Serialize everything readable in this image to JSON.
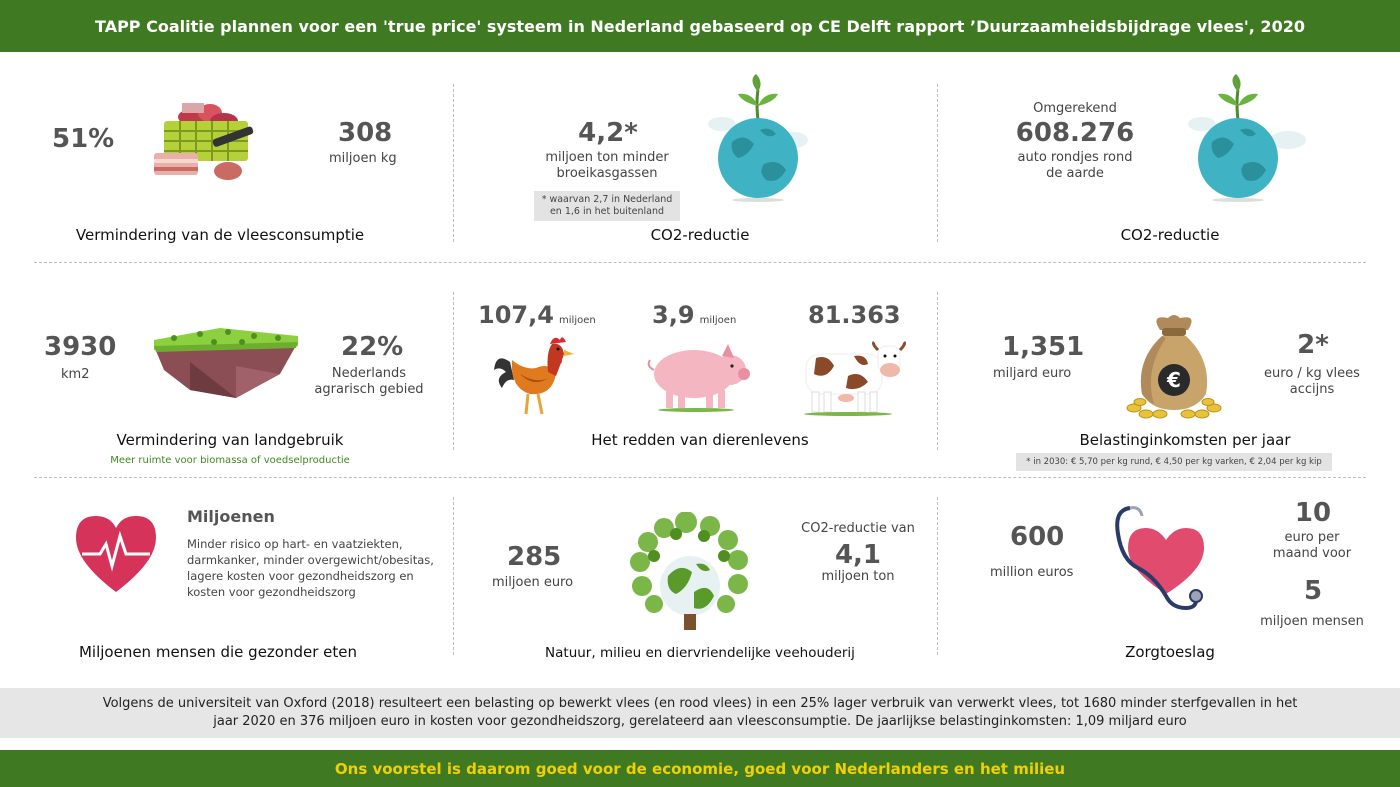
{
  "header": {
    "title": "TAPP Coalitie plannen voor een 'true price' systeem in Nederland gebaseerd op CE Delft rapport ’Duurzaamheidsbijdrage vlees', 2020"
  },
  "meat": {
    "percent": "51%",
    "value": "308",
    "unit": "miljoen kg",
    "caption": "Vermindering van de vleesconsumptie"
  },
  "co2a": {
    "value": "4,2*",
    "text": "miljoen ton minder broeikasgassen",
    "note": "* waarvan 2,7 in Nederland en 1,6 in het buitenland",
    "caption": "CO2-reductie"
  },
  "co2b": {
    "pre": "Omgerekend",
    "value": "608.276",
    "text": "auto rondjes rond de aarde",
    "caption": "CO2-reductie"
  },
  "land": {
    "value": "3930",
    "unit": "km2",
    "percent": "22%",
    "percent_text": "Nederlands agrarisch gebied",
    "caption": "Vermindering van landgebruik",
    "note": "Meer ruimte voor biomassa of voedselproductie"
  },
  "animals": {
    "chicken_value": "107,4",
    "chicken_unit": "miljoen",
    "pig_value": "3,9",
    "pig_unit": "miljoen",
    "cow_value": "81.363",
    "caption": "Het redden van dierenlevens"
  },
  "tax": {
    "value": "1,351",
    "unit": "miljard euro",
    "rate": "2*",
    "rate_unit": "euro / kg vlees accijns",
    "caption": "Belastinginkomsten per jaar",
    "note": "* in 2030: € 5,70 per kg rund, € 4,50 per kg varken, € 2,04 per kg kip",
    "bag_symbol": "€"
  },
  "health": {
    "title": "Miljoenen",
    "text": "Minder risico op hart- en vaatziekten, darmkanker, minder overgewicht/obesitas, lagere kosten voor gezondheidszorg en kosten voor gezondheidszorg",
    "caption": "Miljoenen mensen die gezonder eten"
  },
  "nature": {
    "value": "285",
    "unit": "miljoen euro",
    "co2_pre": "CO2-reductie van",
    "co2_value": "4,1",
    "co2_unit": "miljoen ton",
    "caption": "Natuur, milieu en diervriendelijke veehouderij"
  },
  "care": {
    "value": "600",
    "unit": "million euros",
    "per_value": "10",
    "per_text": "euro per maand voor",
    "people_value": "5",
    "people_text": "miljoen mensen",
    "caption": "Zorgtoeslag"
  },
  "band": {
    "text": "Volgens de universiteit van Oxford (2018) resulteert een belasting op bewerkt vlees (en rood vlees) in een 25% lager verbruik van verwerkt vlees, tot 1680 minder sterfgevallen in het jaar 2020 en 376 miljoen euro in kosten voor gezondheidszorg, gerelateerd aan vleesconsumptie. De jaarlijkse belastinginkomsten: 1,09 miljard euro"
  },
  "footer": {
    "text": "Ons voorstel is daarom goed voor de economie, goed voor Nederlanders en het milieu"
  },
  "colors": {
    "green": "#3f7a22",
    "yellow": "#f2d000",
    "earth": "#3fb3c4",
    "heart": "#d6335a"
  }
}
